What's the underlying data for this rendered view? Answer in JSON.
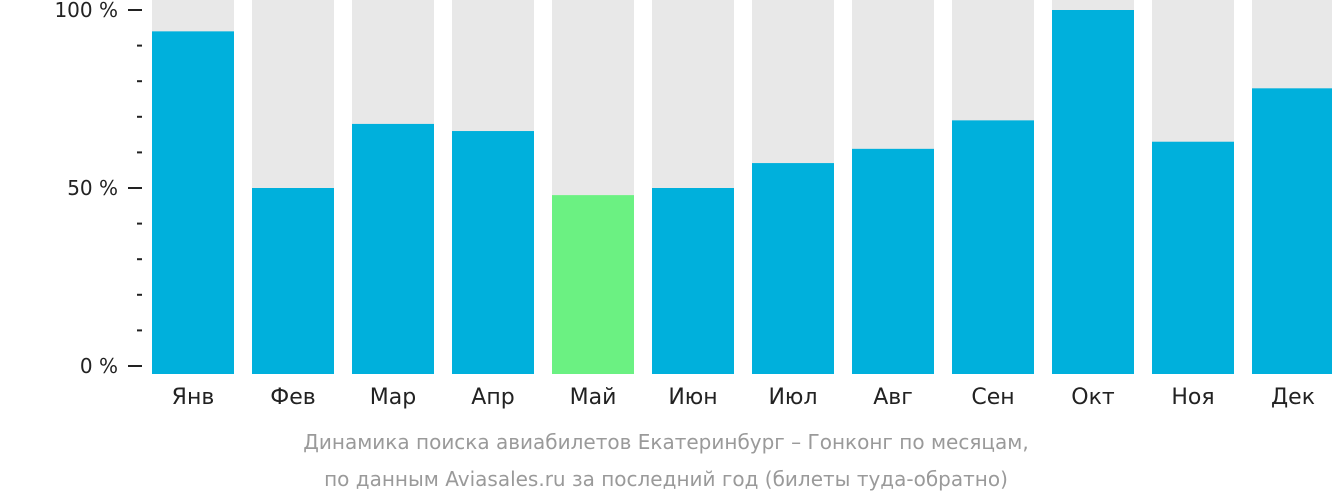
{
  "chart_data": {
    "type": "bar",
    "categories": [
      "Янв",
      "Фев",
      "Мар",
      "Апр",
      "Май",
      "Июн",
      "Июл",
      "Авг",
      "Сен",
      "Окт",
      "Ноя",
      "Дек"
    ],
    "values": [
      94,
      50,
      68,
      66,
      48,
      50,
      57,
      61,
      69,
      100,
      63,
      78
    ],
    "highlight_index": 4,
    "ylim": [
      0,
      100
    ],
    "yticks": [
      {
        "value": 100,
        "label": "100 %"
      },
      {
        "value": 50,
        "label": "50 %"
      },
      {
        "value": 0,
        "label": "0 %"
      }
    ],
    "minor_tick_step": 10,
    "grid": false,
    "colors": {
      "bar": "#00b0dc",
      "highlight": "#6bf182",
      "background_bar": "#e8e8e8",
      "axis": "#222222"
    },
    "caption": [
      "Динамика поиска авиабилетов Екатеринбург – Гонконг по месяцам,",
      "по данным Aviasales.ru за последний год (билеты туда-обратно)"
    ]
  }
}
